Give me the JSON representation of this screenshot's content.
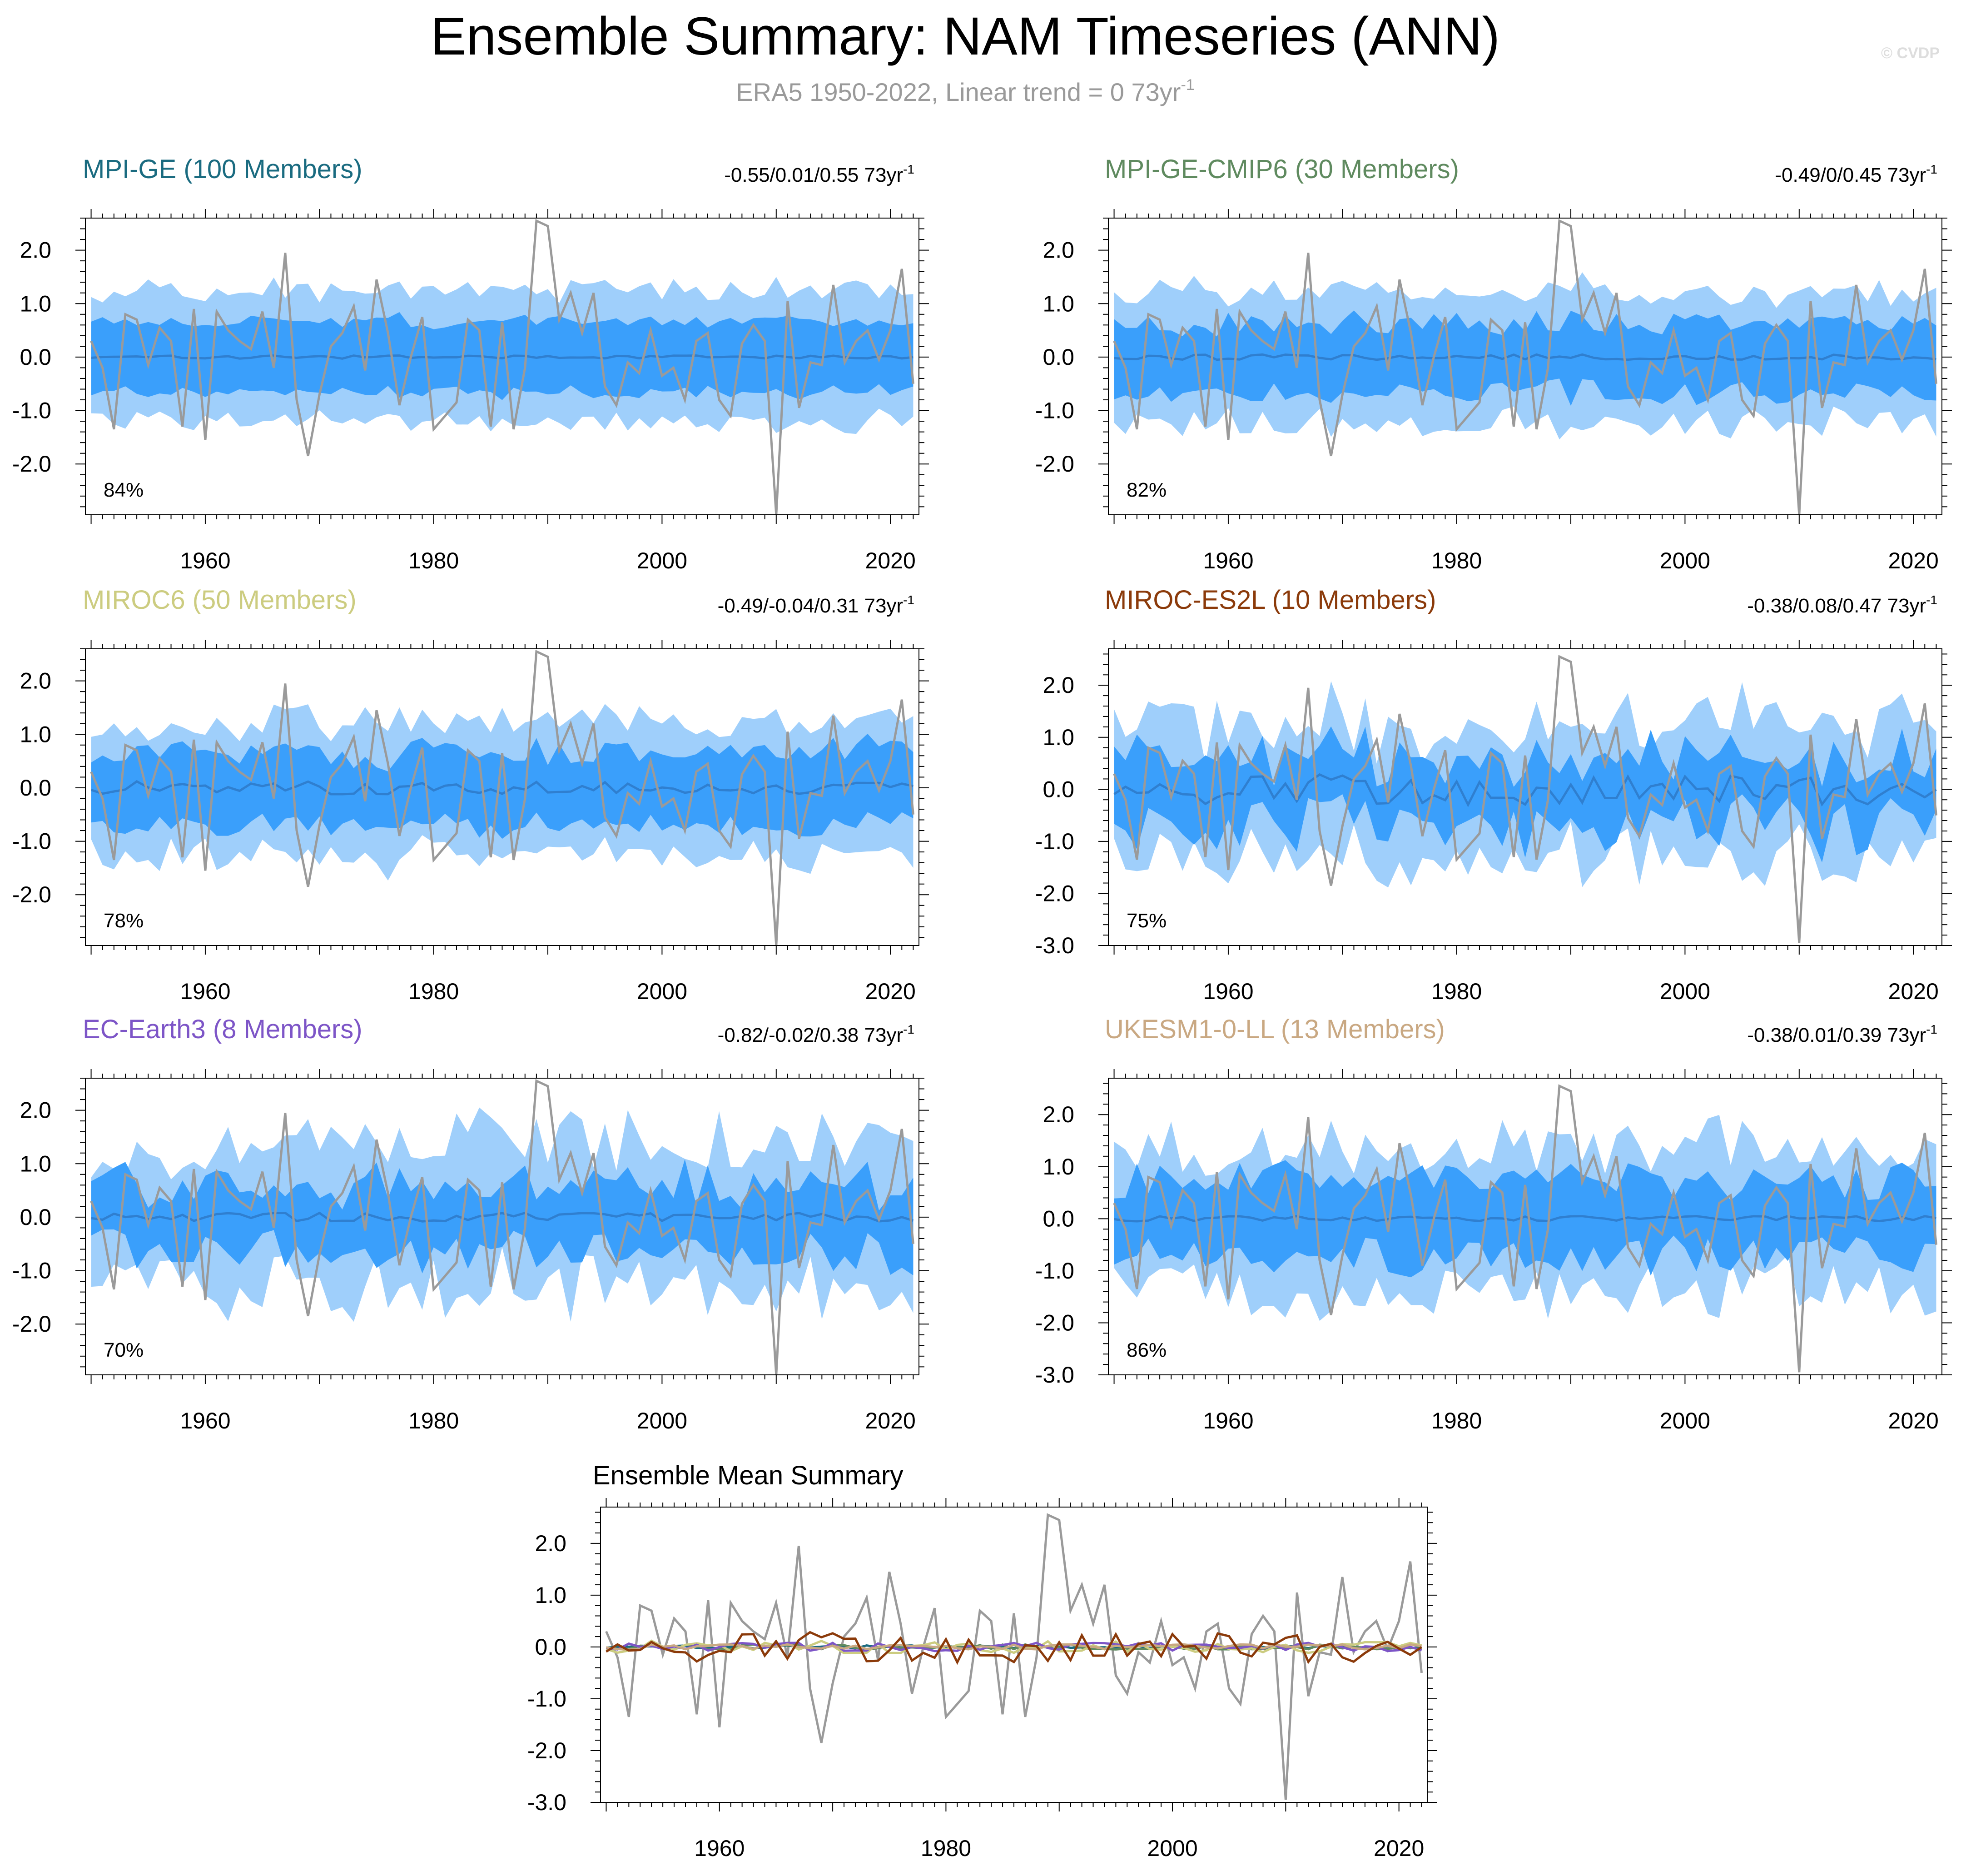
{
  "header": {
    "title": "Ensemble Summary: NAM Timeseries (ANN)",
    "subtitle_main": "ERA5 1950-2022, Linear trend = 0 73yr",
    "subtitle_sup": "-1",
    "credit": "© CVDP"
  },
  "units": {
    "trend_suffix": "73yr",
    "trend_sup": "-1"
  },
  "chart_data": [
    {
      "type": "area",
      "id": "mpi-ge",
      "title": "MPI-GE (100 Members)",
      "title_color": "#1a6b80",
      "stats": "-0.55/0.01/0.55",
      "percent": "84%",
      "ylim": [
        -2.95,
        2.6
      ],
      "yticks": [
        "2.0",
        "1.0",
        "0.0",
        "-1.0",
        "-2.0"
      ],
      "xticks": [
        "1960",
        "1980",
        "2000",
        "2020"
      ],
      "x_range": [
        1949.5,
        2022.5
      ],
      "spread_outer": [
        1.15,
        1.32
      ],
      "spread_inner": [
        0.6,
        0.72
      ],
      "noise_outer": 0.18,
      "noise_inner": 0.1,
      "mean_amp": 0.03,
      "seed": 11
    },
    {
      "type": "area",
      "id": "mpi-ge-cmip6",
      "title": "MPI-GE-CMIP6 (30 Members)",
      "title_color": "#5f8a5f",
      "stats": "-0.49/0/0.45",
      "percent": "82%",
      "ylim": [
        -2.95,
        2.6
      ],
      "yticks": [
        "2.0",
        "1.0",
        "0.0",
        "-1.0",
        "-2.0"
      ],
      "xticks": [
        "1960",
        "1980",
        "2000",
        "2020"
      ],
      "x_range": [
        1949.5,
        2022.5
      ],
      "spread_outer": [
        1.15,
        1.35
      ],
      "spread_inner": [
        0.6,
        0.72
      ],
      "noise_outer": 0.25,
      "noise_inner": 0.2,
      "mean_amp": 0.05,
      "seed": 23
    },
    {
      "type": "area",
      "id": "miroc6",
      "title": "MIROC6 (50 Members)",
      "title_color": "#cccc80",
      "stats": "-0.49/-0.04/0.31",
      "percent": "78%",
      "ylim": [
        -2.95,
        2.6
      ],
      "yticks": [
        "2.0",
        "1.0",
        "0.0",
        "-1.0",
        "-2.0"
      ],
      "xticks": [
        "1960",
        "1980",
        "2000",
        "2020"
      ],
      "x_range": [
        1949.5,
        2022.5
      ],
      "spread_outer": [
        1.15,
        1.35
      ],
      "spread_inner": [
        0.6,
        0.75
      ],
      "noise_outer": 0.3,
      "noise_inner": 0.2,
      "mean_amp": 0.12,
      "seed": 37
    },
    {
      "type": "area",
      "id": "miroc-es2l",
      "title": "MIROC-ES2L (10 Members)",
      "title_color": "#8b3a0a",
      "stats": "-0.38/0.08/0.47",
      "percent": "75%",
      "ylim": [
        -3.0,
        2.7
      ],
      "yticks": [
        "2.0",
        "1.0",
        "0.0",
        "-1.0",
        "-2.0",
        "-3.0"
      ],
      "xticks": [
        "1960",
        "1980",
        "2000",
        "2020"
      ],
      "x_range": [
        1949.5,
        2022.5
      ],
      "spread_outer": [
        1.1,
        1.5
      ],
      "spread_inner": [
        0.55,
        0.75
      ],
      "noise_outer": 0.55,
      "noise_inner": 0.4,
      "mean_amp": 0.3,
      "seed": 41
    },
    {
      "type": "area",
      "id": "ec-earth3",
      "title": "EC-Earth3 (8 Members)",
      "title_color": "#7d55c7",
      "stats": "-0.82/-0.02/0.38",
      "percent": "70%",
      "ylim": [
        -2.95,
        2.6
      ],
      "yticks": [
        "2.0",
        "1.0",
        "0.0",
        "-1.0",
        "-2.0"
      ],
      "xticks": [
        "1960",
        "1980",
        "2000",
        "2020"
      ],
      "x_range": [
        1949.5,
        2022.5
      ],
      "spread_outer": [
        1.0,
        1.6
      ],
      "spread_inner": [
        0.5,
        0.8
      ],
      "noise_outer": 0.5,
      "noise_inner": 0.4,
      "mean_amp": 0.08,
      "seed": 53
    },
    {
      "type": "area",
      "id": "ukesm1-0-ll",
      "title": "UKESM1-0-LL (13 Members)",
      "title_color": "#c9a882",
      "stats": "-0.38/0.01/0.39",
      "percent": "86%",
      "ylim": [
        -3.0,
        2.7
      ],
      "yticks": [
        "2.0",
        "1.0",
        "0.0",
        "-1.0",
        "-2.0",
        "-3.0"
      ],
      "xticks": [
        "1960",
        "1980",
        "2000",
        "2020"
      ],
      "x_range": [
        1949.5,
        2022.5
      ],
      "spread_outer": [
        1.2,
        1.55
      ],
      "spread_inner": [
        0.65,
        0.85
      ],
      "noise_outer": 0.5,
      "noise_inner": 0.35,
      "mean_amp": 0.05,
      "seed": 67
    },
    {
      "type": "line",
      "id": "ensemble-mean-summary",
      "title": "Ensemble Mean Summary",
      "ylim": [
        -3.0,
        2.7
      ],
      "yticks": [
        "2.0",
        "1.0",
        "0.0",
        "-1.0",
        "-2.0",
        "-3.0"
      ],
      "xticks": [
        "1960",
        "1980",
        "2000",
        "2020"
      ],
      "x_range": [
        1949.5,
        2022.5
      ],
      "series": [
        {
          "name": "MPI-GE",
          "color": "#1a6b80",
          "amp": 0.03,
          "seed": 11
        },
        {
          "name": "MPI-GE-CMIP6",
          "color": "#5f8a5f",
          "amp": 0.05,
          "seed": 23
        },
        {
          "name": "MIROC6",
          "color": "#cccc80",
          "amp": 0.12,
          "seed": 37
        },
        {
          "name": "EC-Earth3",
          "color": "#7d55c7",
          "amp": 0.08,
          "seed": 53
        },
        {
          "name": "UKESM1-0-LL",
          "color": "#c9a882",
          "amp": 0.05,
          "seed": 67
        },
        {
          "name": "MIROC-ES2L",
          "color": "#8b3a0a",
          "amp": 0.3,
          "seed": 41
        }
      ]
    }
  ],
  "observations": {
    "name": "ERA5",
    "color": "#9a9a9a",
    "years": [
      1950,
      1951,
      1952,
      1953,
      1954,
      1955,
      1956,
      1957,
      1958,
      1959,
      1960,
      1961,
      1962,
      1963,
      1964,
      1965,
      1966,
      1967,
      1968,
      1969,
      1970,
      1971,
      1972,
      1973,
      1974,
      1975,
      1976,
      1977,
      1978,
      1979,
      1980,
      1981,
      1982,
      1983,
      1984,
      1985,
      1986,
      1987,
      1988,
      1989,
      1990,
      1991,
      1992,
      1993,
      1994,
      1995,
      1996,
      1997,
      1998,
      1999,
      2000,
      2001,
      2002,
      2003,
      2004,
      2005,
      2006,
      2007,
      2008,
      2009,
      2010,
      2011,
      2012,
      2013,
      2014,
      2015,
      2016,
      2017,
      2018,
      2019,
      2020,
      2021,
      2022
    ],
    "values": [
      0.3,
      -0.2,
      -1.35,
      0.8,
      0.7,
      -0.15,
      0.55,
      0.3,
      -1.3,
      0.9,
      -1.55,
      0.85,
      0.5,
      0.3,
      0.15,
      0.85,
      -0.2,
      1.95,
      -0.8,
      -1.85,
      -0.7,
      0.2,
      0.45,
      0.95,
      -0.25,
      1.45,
      0.45,
      -0.9,
      0.0,
      0.75,
      -1.35,
      -1.1,
      -0.85,
      0.7,
      0.5,
      -1.3,
      0.65,
      -1.35,
      -0.2,
      2.55,
      2.45,
      0.7,
      1.2,
      0.45,
      1.2,
      -0.55,
      -0.9,
      -0.1,
      -0.3,
      0.5,
      -0.35,
      -0.2,
      -0.8,
      0.3,
      0.45,
      -0.8,
      -1.1,
      0.25,
      0.6,
      0.3,
      -2.95,
      1.05,
      -0.95,
      -0.1,
      -0.15,
      1.35,
      -0.1,
      0.3,
      0.5,
      -0.05,
      0.5,
      1.65,
      -0.5
    ]
  }
}
